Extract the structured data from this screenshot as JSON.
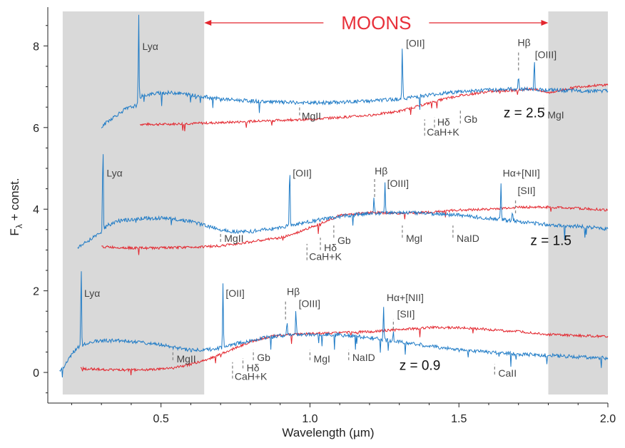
{
  "chart_data": {
    "type": "line",
    "xlabel": "Wavelength (µm)",
    "ylabel": "F",
    "ylabel_sub": "λ",
    "ylabel_suffix": " + const.",
    "xlim": [
      0.12,
      2.0
    ],
    "ylim": [
      -0.75,
      8.95
    ],
    "xticks": [
      0.5,
      1.0,
      1.5,
      2.0
    ],
    "xtick_labels": [
      "0.5",
      "1.0",
      "1.5",
      "2.0"
    ],
    "yticks": [
      0,
      2,
      4,
      6,
      8
    ],
    "ytick_labels": [
      "0",
      "2",
      "4",
      "6",
      "8"
    ],
    "grid": false,
    "shaded_regions": [
      [
        0.17,
        0.645
      ],
      [
        1.8,
        2.0
      ]
    ],
    "range_label": "MOONS",
    "range": [
      0.645,
      1.8
    ],
    "colors": {
      "blue": "#1f7bc6",
      "red": "#e3262e",
      "shade": "#d9d9d9",
      "dash": "#888888"
    },
    "redshifts": [
      {
        "label": "z = 2.5",
        "lx": 1.65,
        "ly": 6.25,
        "blue": {
          "x": [
            0.3,
            0.32,
            0.35,
            0.38,
            0.4,
            0.42,
            0.425,
            0.43,
            0.45,
            0.5,
            0.55,
            0.6,
            0.65,
            0.7,
            0.8,
            0.9,
            1.0,
            1.1,
            1.2,
            1.3,
            1.4,
            1.5,
            1.6,
            1.7,
            1.8,
            1.9,
            2.0
          ],
          "y": [
            6.0,
            6.15,
            6.3,
            6.45,
            6.5,
            6.55,
            6.6,
            6.75,
            6.8,
            6.85,
            6.85,
            6.8,
            6.75,
            6.7,
            6.65,
            6.62,
            6.6,
            6.62,
            6.65,
            6.7,
            6.8,
            6.88,
            6.92,
            6.95,
            6.92,
            6.9,
            6.9
          ]
        },
        "red": {
          "x": [
            0.43,
            0.5,
            0.6,
            0.7,
            0.8,
            0.9,
            1.0,
            1.1,
            1.2,
            1.3,
            1.35,
            1.4,
            1.45,
            1.5,
            1.6,
            1.7,
            1.75,
            1.8,
            1.9,
            2.0
          ],
          "y": [
            6.08,
            6.08,
            6.1,
            6.12,
            6.15,
            6.18,
            6.2,
            6.25,
            6.3,
            6.4,
            6.5,
            6.6,
            6.7,
            6.78,
            6.88,
            6.92,
            6.95,
            6.85,
            7.0,
            7.05
          ]
        },
        "peaks": [
          {
            "x": 0.425,
            "h": 2.2
          },
          {
            "x": 1.31,
            "h": 1.3
          },
          {
            "x": 1.7,
            "h": 0.35
          },
          {
            "x": 1.753,
            "h": 0.75
          }
        ]
      },
      {
        "label": "z = 1.5",
        "lx": 1.74,
        "ly": 3.12,
        "blue": {
          "x": [
            0.22,
            0.25,
            0.28,
            0.3,
            0.305,
            0.32,
            0.35,
            0.4,
            0.45,
            0.5,
            0.55,
            0.6,
            0.65,
            0.7,
            0.75,
            0.8,
            0.85,
            0.9,
            0.95,
            1.0,
            1.1,
            1.2,
            1.3,
            1.4,
            1.5,
            1.6,
            1.7,
            1.8,
            1.9,
            2.0
          ],
          "y": [
            3.05,
            3.2,
            3.35,
            3.45,
            3.5,
            3.6,
            3.7,
            3.75,
            3.78,
            3.78,
            3.75,
            3.7,
            3.6,
            3.5,
            3.45,
            3.45,
            3.5,
            3.55,
            3.62,
            3.7,
            3.82,
            3.9,
            3.92,
            3.9,
            3.85,
            3.78,
            3.7,
            3.62,
            3.58,
            3.52
          ]
        },
        "red": {
          "x": [
            0.3,
            0.4,
            0.5,
            0.6,
            0.7,
            0.8,
            0.9,
            0.95,
            1.0,
            1.05,
            1.1,
            1.2,
            1.3,
            1.4,
            1.5,
            1.6,
            1.7,
            1.8,
            1.9,
            2.0
          ],
          "y": [
            3.08,
            3.05,
            3.05,
            3.07,
            3.1,
            3.2,
            3.3,
            3.4,
            3.55,
            3.7,
            3.85,
            3.92,
            3.9,
            3.92,
            3.98,
            4.0,
            4.05,
            4.05,
            4.02,
            3.98
          ]
        },
        "peaks": [
          {
            "x": 0.305,
            "h": 2.3
          },
          {
            "x": 0.932,
            "h": 1.6
          },
          {
            "x": 1.215,
            "h": 0.45
          },
          {
            "x": 1.252,
            "h": 0.75
          },
          {
            "x": 1.641,
            "h": 0.9
          },
          {
            "x": 1.68,
            "h": 0.25
          }
        ]
      },
      {
        "label": "z = 0.9",
        "lx": 1.3,
        "ly": 0.06,
        "blue": {
          "x": [
            0.16,
            0.18,
            0.2,
            0.22,
            0.23,
            0.25,
            0.3,
            0.35,
            0.4,
            0.45,
            0.5,
            0.55,
            0.6,
            0.65,
            0.7,
            0.75,
            0.8,
            0.85,
            0.9,
            0.95,
            1.0,
            1.1,
            1.2,
            1.3,
            1.4,
            1.5,
            1.6,
            1.7,
            1.8,
            1.9,
            2.0
          ],
          "y": [
            0.02,
            0.2,
            0.45,
            0.6,
            0.65,
            0.72,
            0.78,
            0.78,
            0.75,
            0.72,
            0.68,
            0.6,
            0.55,
            0.55,
            0.6,
            0.7,
            0.78,
            0.85,
            0.9,
            0.92,
            0.93,
            0.92,
            0.85,
            0.75,
            0.65,
            0.55,
            0.5,
            0.45,
            0.42,
            0.38,
            0.35
          ]
        },
        "red": {
          "x": [
            0.23,
            0.3,
            0.4,
            0.5,
            0.55,
            0.6,
            0.65,
            0.7,
            0.75,
            0.8,
            0.85,
            0.9,
            1.0,
            1.1,
            1.2,
            1.3,
            1.4,
            1.5,
            1.6,
            1.7,
            1.8,
            1.9,
            2.0
          ],
          "y": [
            0.1,
            0.07,
            0.06,
            0.08,
            0.12,
            0.2,
            0.3,
            0.45,
            0.6,
            0.75,
            0.85,
            0.92,
            0.95,
            0.97,
            1.0,
            1.05,
            1.1,
            1.1,
            1.05,
            1.0,
            0.93,
            0.9,
            0.88
          ]
        },
        "peaks": [
          {
            "x": 0.232,
            "h": 2.1
          },
          {
            "x": 0.708,
            "h": 1.55
          },
          {
            "x": 0.923,
            "h": 0.4
          },
          {
            "x": 0.953,
            "h": 0.62
          },
          {
            "x": 1.247,
            "h": 0.8
          },
          {
            "x": 1.28,
            "h": 0.2
          }
        ]
      }
    ],
    "annotations": [
      {
        "text": "Lyα",
        "x": 0.43,
        "y": 7.9
      },
      {
        "text": "MgII",
        "x": 0.965,
        "y": 6.2,
        "dash": [
          0.965,
          6.3,
          6.55
        ]
      },
      {
        "text": "[OII]",
        "x": 1.315,
        "y": 7.98
      },
      {
        "text": "Hβ",
        "x": 1.69,
        "y": 8.0,
        "dash": [
          1.7,
          7.4,
          7.85
        ]
      },
      {
        "text": "[OIII]",
        "x": 1.748,
        "y": 7.7
      },
      {
        "text": "Hδ",
        "x": 1.42,
        "y": 6.05,
        "dash": [
          1.418,
          6.0,
          6.25
        ]
      },
      {
        "text": "Gb",
        "x": 1.51,
        "y": 6.12,
        "dash": [
          1.505,
          6.1,
          6.45
        ]
      },
      {
        "text": "CaH+K",
        "x": 1.385,
        "y": 5.8,
        "dash": [
          1.385,
          5.8,
          6.2
        ]
      },
      {
        "text": "MgI",
        "x": 1.79,
        "y": 6.22,
        "dash": [
          1.785,
          6.3,
          6.55
        ]
      },
      {
        "text": "Lyα",
        "x": 0.31,
        "y": 4.8
      },
      {
        "text": "[OII]",
        "x": 0.935,
        "y": 4.8
      },
      {
        "text": "Hβ",
        "x": 1.21,
        "y": 4.85,
        "dash": [
          1.217,
          4.3,
          4.75
        ]
      },
      {
        "text": "[OIII]",
        "x": 1.252,
        "y": 4.55
      },
      {
        "text": "Hα+[NII]",
        "x": 1.64,
        "y": 4.8
      },
      {
        "text": "[SII]",
        "x": 1.69,
        "y": 4.37,
        "dash": [
          1.69,
          3.9,
          4.25
        ]
      },
      {
        "text": "MgII",
        "x": 0.705,
        "y": 3.2,
        "dash": [
          0.7,
          3.2,
          3.45
        ]
      },
      {
        "text": "Gb",
        "x": 1.085,
        "y": 3.15,
        "dash": [
          1.08,
          3.3,
          3.6
        ]
      },
      {
        "text": "Hδ",
        "x": 1.04,
        "y": 2.97,
        "dash": [
          1.035,
          3.0,
          3.3
        ]
      },
      {
        "text": "CaH+K",
        "x": 0.99,
        "y": 2.75,
        "dash": [
          0.99,
          2.75,
          3.15
        ]
      },
      {
        "text": "MgI",
        "x": 1.315,
        "y": 3.2,
        "dash": [
          1.31,
          3.3,
          3.6
        ]
      },
      {
        "text": "NaID",
        "x": 1.485,
        "y": 3.2,
        "dash": [
          1.48,
          3.3,
          3.6
        ]
      },
      {
        "text": "Lyα",
        "x": 0.235,
        "y": 1.85
      },
      {
        "text": "[OII]",
        "x": 0.71,
        "y": 1.85
      },
      {
        "text": "Hβ",
        "x": 0.915,
        "y": 1.9,
        "dash": [
          0.918,
          1.3,
          1.75
        ]
      },
      {
        "text": "[OIII]",
        "x": 0.955,
        "y": 1.6
      },
      {
        "text": "Hα+[NII]",
        "x": 1.25,
        "y": 1.75
      },
      {
        "text": "[SII]",
        "x": 1.285,
        "y": 1.35,
        "dash": [
          1.28,
          1.05,
          1.3
        ]
      },
      {
        "text": "MgII",
        "x": 0.545,
        "y": 0.25,
        "dash": [
          0.54,
          0.3,
          0.55
        ]
      },
      {
        "text": "Gb",
        "x": 0.815,
        "y": 0.28,
        "dash": [
          0.81,
          0.3,
          0.55
        ]
      },
      {
        "text": "Hδ",
        "x": 0.78,
        "y": 0.03,
        "dash": [
          0.775,
          0.1,
          0.35
        ]
      },
      {
        "text": "CaH+K",
        "x": 0.74,
        "y": -0.18,
        "dash": [
          0.74,
          -0.15,
          0.25
        ]
      },
      {
        "text": "MgI",
        "x": 1.005,
        "y": 0.25,
        "dash": [
          1.0,
          0.3,
          0.55
        ]
      },
      {
        "text": "NaID",
        "x": 1.135,
        "y": 0.28,
        "dash": [
          1.13,
          0.3,
          0.55
        ]
      },
      {
        "text": "CaII",
        "x": 1.625,
        "y": -0.1,
        "dash": [
          1.62,
          -0.05,
          0.2
        ]
      }
    ]
  }
}
